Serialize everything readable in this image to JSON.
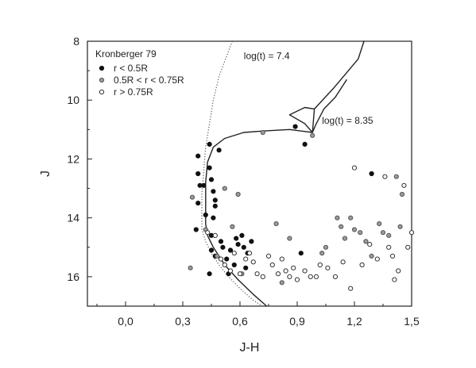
{
  "chart_data": {
    "type": "scatter",
    "title": "",
    "xlabel": "J-H",
    "ylabel": "J",
    "xlim": [
      -0.2,
      1.5
    ],
    "ylim": [
      17,
      8
    ],
    "x_ticks": [
      0.0,
      0.3,
      0.6,
      0.9,
      1.2,
      1.5
    ],
    "x_tick_labels": [
      "0,0",
      "0,3",
      "0,6",
      "0,9",
      "1,2",
      "1,5"
    ],
    "y_ticks": [
      8,
      10,
      12,
      14,
      16
    ],
    "y_tick_labels": [
      "8",
      "10",
      "12",
      "14",
      "16"
    ],
    "grid": false,
    "legend": {
      "placement": "top-left",
      "title": "Kronberger 79",
      "entries": [
        "r < 0.5R",
        "0.5R < r < 0.75R",
        "r > 0.75R"
      ]
    },
    "series": [
      {
        "name": "r < 0.5R",
        "marker": "filled-circle",
        "points": [
          [
            0.38,
            11.9
          ],
          [
            0.38,
            12.5
          ],
          [
            0.39,
            12.9
          ],
          [
            0.38,
            13.5
          ],
          [
            0.37,
            14.4
          ],
          [
            0.41,
            12.9
          ],
          [
            0.42,
            13.9
          ],
          [
            0.44,
            11.5
          ],
          [
            0.44,
            12.3
          ],
          [
            0.45,
            12.7
          ],
          [
            0.46,
            13.1
          ],
          [
            0.47,
            13.4
          ],
          [
            0.47,
            13.6
          ],
          [
            0.46,
            14.0
          ],
          [
            0.45,
            14.6
          ],
          [
            0.45,
            15.1
          ],
          [
            0.47,
            15.3
          ],
          [
            0.49,
            11.7
          ],
          [
            0.5,
            14.8
          ],
          [
            0.51,
            15.0
          ],
          [
            0.53,
            15.4
          ],
          [
            0.55,
            15.1
          ],
          [
            0.57,
            15.6
          ],
          [
            0.58,
            14.7
          ],
          [
            0.59,
            14.9
          ],
          [
            0.61,
            14.6
          ],
          [
            0.62,
            15.0
          ],
          [
            0.64,
            15.2
          ],
          [
            0.66,
            14.8
          ],
          [
            0.63,
            15.7
          ],
          [
            0.54,
            15.9
          ],
          [
            0.44,
            15.9
          ],
          [
            0.89,
            10.9
          ],
          [
            0.94,
            11.5
          ],
          [
            0.92,
            15.2
          ],
          [
            1.29,
            12.5
          ]
        ]
      },
      {
        "name": "0.5R < r < 0.75R",
        "marker": "gray-circle",
        "points": [
          [
            0.35,
            13.3
          ],
          [
            0.34,
            15.7
          ],
          [
            0.42,
            14.4
          ],
          [
            0.48,
            15.3
          ],
          [
            0.52,
            13.0
          ],
          [
            0.56,
            14.3
          ],
          [
            0.59,
            13.2
          ],
          [
            0.61,
            15.9
          ],
          [
            0.72,
            11.1
          ],
          [
            0.79,
            14.2
          ],
          [
            0.82,
            16.2
          ],
          [
            0.86,
            14.7
          ],
          [
            0.98,
            11.2
          ],
          [
            1.03,
            15.2
          ],
          [
            1.05,
            15.0
          ],
          [
            1.11,
            14.0
          ],
          [
            1.13,
            14.3
          ],
          [
            1.15,
            14.7
          ],
          [
            1.18,
            14.0
          ],
          [
            1.2,
            14.4
          ],
          [
            1.23,
            14.5
          ],
          [
            1.26,
            14.8
          ],
          [
            1.29,
            15.3
          ],
          [
            1.33,
            14.2
          ],
          [
            1.35,
            14.5
          ],
          [
            1.38,
            14.6
          ],
          [
            1.42,
            12.6
          ],
          [
            1.45,
            13.2
          ],
          [
            1.44,
            14.3
          ]
        ]
      },
      {
        "name": "r > 0.75R",
        "marker": "open-circle",
        "points": [
          [
            0.43,
            14.5
          ],
          [
            0.47,
            14.6
          ],
          [
            0.5,
            15.4
          ],
          [
            0.52,
            15.6
          ],
          [
            0.55,
            15.8
          ],
          [
            0.57,
            15.2
          ],
          [
            0.6,
            15.9
          ],
          [
            0.63,
            15.4
          ],
          [
            0.65,
            15.2
          ],
          [
            0.67,
            15.5
          ],
          [
            0.69,
            15.9
          ],
          [
            0.72,
            16.0
          ],
          [
            0.75,
            15.3
          ],
          [
            0.77,
            15.6
          ],
          [
            0.8,
            15.9
          ],
          [
            0.82,
            15.4
          ],
          [
            0.84,
            15.8
          ],
          [
            0.86,
            16.0
          ],
          [
            0.88,
            15.7
          ],
          [
            0.9,
            16.1
          ],
          [
            0.94,
            15.8
          ],
          [
            0.97,
            16.0
          ],
          [
            1.0,
            16.0
          ],
          [
            1.02,
            15.6
          ],
          [
            1.06,
            15.7
          ],
          [
            1.1,
            16.0
          ],
          [
            1.14,
            15.5
          ],
          [
            1.18,
            16.4
          ],
          [
            1.2,
            12.3
          ],
          [
            1.24,
            15.6
          ],
          [
            1.28,
            14.9
          ],
          [
            1.32,
            15.4
          ],
          [
            1.36,
            12.6
          ],
          [
            1.38,
            15.0
          ],
          [
            1.4,
            15.3
          ],
          [
            1.41,
            16.1
          ],
          [
            1.43,
            15.8
          ],
          [
            1.46,
            12.9
          ],
          [
            1.48,
            15.0
          ],
          [
            1.5,
            14.5
          ]
        ]
      }
    ],
    "isochrones": [
      {
        "label": "log(t) = 7.4",
        "style": "dotted",
        "points": [
          [
            0.56,
            8.0
          ],
          [
            0.53,
            8.5
          ],
          [
            0.49,
            9.2
          ],
          [
            0.46,
            10.0
          ],
          [
            0.44,
            10.8
          ],
          [
            0.42,
            11.6
          ],
          [
            0.41,
            12.4
          ],
          [
            0.4,
            13.2
          ],
          [
            0.4,
            14.0
          ],
          [
            0.4,
            14.4
          ],
          [
            0.42,
            14.8
          ],
          [
            0.45,
            15.2
          ],
          [
            0.49,
            15.6
          ],
          [
            0.54,
            16.0
          ],
          [
            0.6,
            16.4
          ],
          [
            0.67,
            16.8
          ],
          [
            0.72,
            17.0
          ]
        ]
      },
      {
        "label": "log(t) = 8.35",
        "style": "solid",
        "points": [
          [
            1.16,
            9.3
          ],
          [
            1.1,
            9.9
          ],
          [
            1.04,
            10.3
          ],
          [
            1.0,
            10.8
          ],
          [
            0.98,
            11.1
          ],
          [
            0.94,
            10.8
          ],
          [
            0.86,
            10.5
          ],
          [
            0.94,
            10.25
          ],
          [
            0.99,
            10.3
          ],
          [
            1.09,
            9.6
          ],
          [
            1.22,
            8.6
          ],
          [
            1.25,
            8.0
          ],
          [
            1.22,
            8.6
          ],
          [
            1.09,
            9.6
          ],
          [
            0.99,
            10.3
          ],
          [
            0.98,
            11.1
          ],
          [
            0.86,
            11.0
          ],
          [
            0.72,
            11.05
          ],
          [
            0.62,
            11.1
          ],
          [
            0.52,
            11.3
          ],
          [
            0.46,
            11.6
          ],
          [
            0.43,
            12.1
          ],
          [
            0.42,
            12.8
          ],
          [
            0.42,
            13.6
          ],
          [
            0.42,
            14.2
          ],
          [
            0.43,
            14.6
          ],
          [
            0.46,
            15.0
          ],
          [
            0.52,
            15.6
          ],
          [
            0.59,
            16.1
          ],
          [
            0.67,
            16.6
          ],
          [
            0.74,
            17.0
          ]
        ]
      }
    ],
    "annotations": [
      {
        "text": "log(t) = 7.4",
        "x": 0.62,
        "y": 8.6
      },
      {
        "text": "log(t) = 8.35",
        "x": 1.03,
        "y": 10.8
      }
    ]
  }
}
